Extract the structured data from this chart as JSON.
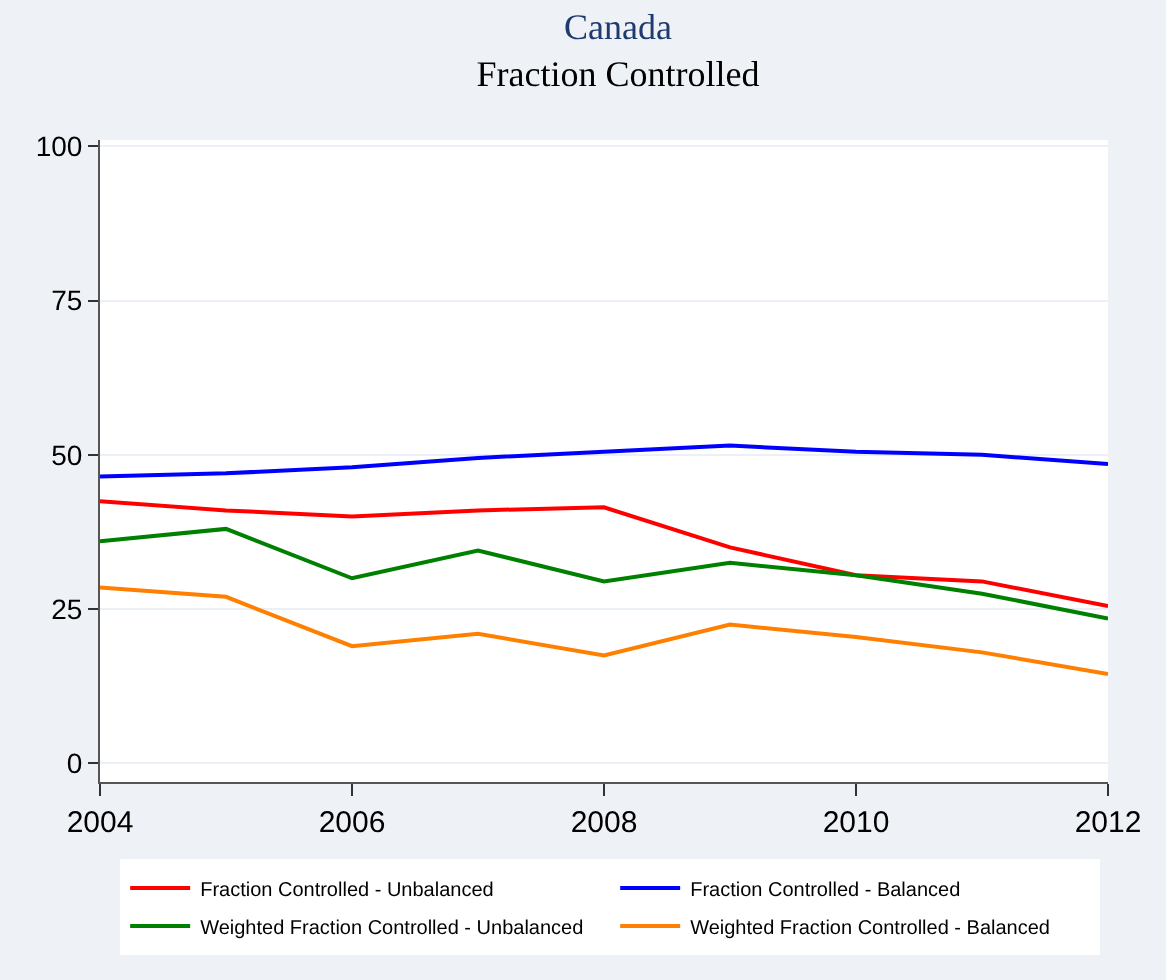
{
  "chart_data": {
    "type": "line",
    "title": "Canada",
    "subtitle": "Fraction Controlled",
    "x": [
      2004,
      2005,
      2006,
      2007,
      2008,
      2009,
      2010,
      2011,
      2012
    ],
    "series": [
      {
        "name": "Fraction Controlled - Unbalanced",
        "color": "#ff0000",
        "values": [
          42.5,
          41,
          40,
          41,
          41.5,
          35,
          30.5,
          29.5,
          25.5
        ]
      },
      {
        "name": "Fraction Controlled - Balanced",
        "color": "#0000ff",
        "values": [
          46.5,
          47,
          48,
          49.5,
          50.5,
          51.5,
          50.5,
          50,
          48.5
        ]
      },
      {
        "name": "Weighted Fraction Controlled - Unbalanced",
        "color": "#008000",
        "values": [
          36,
          38,
          30,
          34.5,
          29.5,
          32.5,
          30.5,
          27.5,
          23.5
        ]
      },
      {
        "name": "Weighted Fraction Controlled - Balanced",
        "color": "#ff8000",
        "values": [
          28.5,
          27,
          19,
          21,
          17.5,
          22.5,
          20.5,
          18,
          14.5
        ]
      }
    ],
    "xlim": [
      2004,
      2012
    ],
    "xticks": [
      2004,
      2006,
      2008,
      2010,
      2012
    ],
    "ylim": [
      -3,
      101
    ],
    "yticks": [
      0,
      25,
      50,
      75,
      100
    ],
    "grid": "y",
    "legend": "bottom",
    "marker": "none",
    "line_style": "solid"
  }
}
